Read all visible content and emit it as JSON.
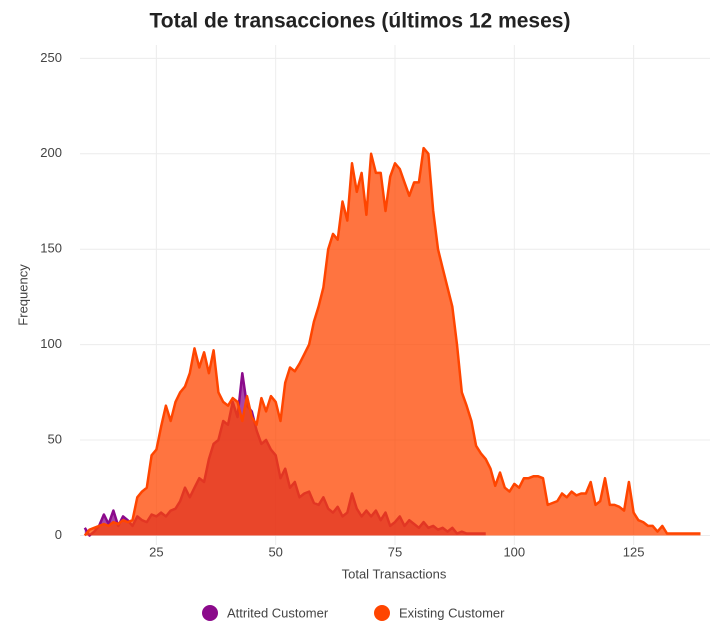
{
  "chart_data": {
    "type": "area",
    "title": "Total de transacciones (últimos 12 meses)",
    "x_label": "Total Transactions",
    "y_label": "Frequency",
    "xlim": [
      9,
      141
    ],
    "ylim": [
      -5,
      257
    ],
    "xticks": [
      25,
      50,
      75,
      100,
      125
    ],
    "yticks": [
      0,
      50,
      100,
      150,
      200,
      250
    ],
    "grid": true,
    "legend": "bottom",
    "series": [
      {
        "name": "Attrited Customer",
        "color": "#8b0a8b",
        "x": [
          10,
          11,
          12,
          13,
          14,
          15,
          16,
          17,
          18,
          19,
          20,
          21,
          22,
          23,
          24,
          25,
          26,
          27,
          28,
          29,
          30,
          31,
          32,
          33,
          34,
          35,
          36,
          37,
          38,
          39,
          40,
          41,
          42,
          43,
          44,
          45,
          46,
          47,
          48,
          49,
          50,
          51,
          52,
          53,
          54,
          55,
          56,
          57,
          58,
          59,
          60,
          61,
          62,
          63,
          64,
          65,
          66,
          67,
          68,
          69,
          70,
          71,
          72,
          73,
          74,
          75,
          76,
          77,
          78,
          79,
          80,
          81,
          82,
          83,
          84,
          85,
          86,
          87,
          88,
          89,
          90,
          91,
          92,
          93,
          94
        ],
        "values": [
          4,
          0,
          2,
          5,
          11,
          6,
          13,
          5,
          10,
          8,
          5,
          10,
          8,
          7,
          11,
          10,
          12,
          10,
          13,
          14,
          18,
          25,
          20,
          25,
          30,
          28,
          40,
          48,
          50,
          60,
          58,
          70,
          62,
          85,
          68,
          65,
          55,
          48,
          50,
          45,
          42,
          30,
          35,
          25,
          28,
          20,
          22,
          23,
          17,
          16,
          20,
          14,
          12,
          15,
          10,
          12,
          22,
          14,
          10,
          13,
          10,
          13,
          8,
          12,
          5,
          7,
          10,
          5,
          8,
          6,
          4,
          7,
          4,
          5,
          3,
          4,
          2,
          4,
          1,
          2,
          1,
          1,
          1,
          1,
          1
        ]
      },
      {
        "name": "Existing Customer",
        "color": "#ff4500",
        "x": [
          10,
          11,
          12,
          13,
          14,
          15,
          16,
          17,
          18,
          19,
          20,
          21,
          22,
          23,
          24,
          25,
          26,
          27,
          28,
          29,
          30,
          31,
          32,
          33,
          34,
          35,
          36,
          37,
          38,
          39,
          40,
          41,
          42,
          43,
          44,
          45,
          46,
          47,
          48,
          49,
          50,
          51,
          52,
          53,
          54,
          55,
          56,
          57,
          58,
          59,
          60,
          61,
          62,
          63,
          64,
          65,
          66,
          67,
          68,
          69,
          70,
          71,
          72,
          73,
          74,
          75,
          76,
          77,
          78,
          79,
          80,
          81,
          82,
          83,
          84,
          85,
          86,
          87,
          88,
          89,
          90,
          91,
          92,
          93,
          94,
          95,
          96,
          97,
          98,
          99,
          100,
          101,
          102,
          103,
          104,
          105,
          106,
          107,
          108,
          109,
          110,
          111,
          112,
          113,
          114,
          115,
          116,
          117,
          118,
          119,
          120,
          121,
          122,
          123,
          124,
          125,
          126,
          127,
          128,
          129,
          130,
          131,
          132,
          133,
          134,
          135,
          136,
          137,
          138,
          139
        ],
        "values": [
          0,
          3,
          4,
          5,
          6,
          5,
          7,
          6,
          8,
          7,
          8,
          20,
          23,
          25,
          42,
          45,
          57,
          68,
          60,
          70,
          75,
          78,
          85,
          98,
          88,
          96,
          85,
          97,
          75,
          70,
          68,
          72,
          70,
          60,
          73,
          62,
          58,
          72,
          65,
          73,
          70,
          60,
          80,
          88,
          86,
          90,
          95,
          100,
          112,
          120,
          130,
          150,
          158,
          155,
          175,
          165,
          195,
          180,
          190,
          168,
          200,
          190,
          190,
          170,
          188,
          195,
          192,
          185,
          178,
          185,
          185,
          203,
          200,
          170,
          150,
          140,
          130,
          120,
          100,
          75,
          68,
          60,
          47,
          43,
          40,
          35,
          26,
          33,
          25,
          23,
          27,
          25,
          30,
          30,
          31,
          31,
          30,
          16,
          17,
          18,
          22,
          20,
          23,
          21,
          22,
          22,
          28,
          16,
          18,
          30,
          16,
          16,
          15,
          13,
          28,
          12,
          8,
          7,
          5,
          5,
          2,
          5,
          1,
          1,
          1,
          1,
          1,
          1,
          1,
          1
        ]
      }
    ]
  }
}
